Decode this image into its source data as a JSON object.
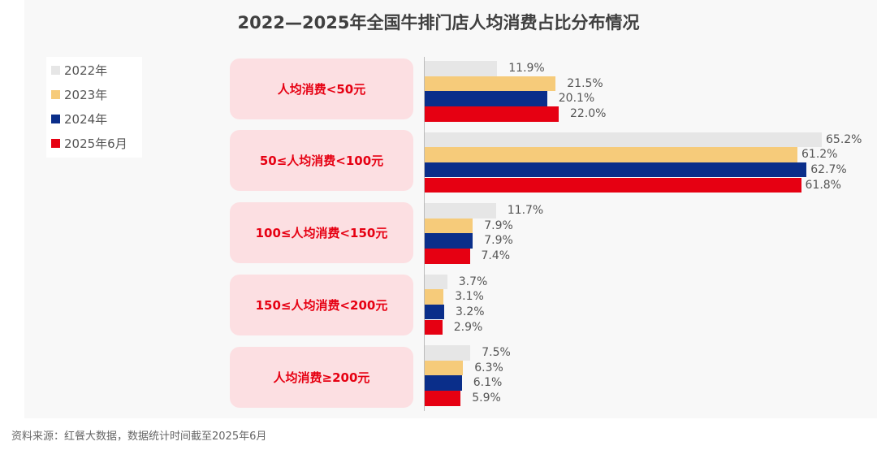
{
  "chart_data": {
    "type": "bar",
    "orientation": "horizontal",
    "title": "2022—2025年全国牛排门店人均消费占比分布情况",
    "categories": [
      "人均消费<50元",
      "50≤人均消费<100元",
      "100≤人均消费<150元",
      "150≤人均消费<200元",
      "人均消费≥200元"
    ],
    "unit": "%",
    "series": [
      {
        "name": "2022年",
        "color": "#e6e6e6",
        "values": [
          11.9,
          65.2,
          11.7,
          3.7,
          7.5
        ]
      },
      {
        "name": "2023年",
        "color": "#f6cb7a",
        "values": [
          21.5,
          61.2,
          7.9,
          3.1,
          6.3
        ]
      },
      {
        "name": "2024年",
        "color": "#0a2e8a",
        "values": [
          20.1,
          62.7,
          7.9,
          3.2,
          6.1
        ]
      },
      {
        "name": "2025年6月",
        "color": "#e60012",
        "values": [
          22.0,
          61.8,
          7.4,
          2.9,
          5.9
        ]
      }
    ],
    "legend_position": "top-left",
    "grid": false,
    "xlim": [
      0,
      70
    ]
  },
  "source": "资料来源：红餐大数据，数据统计时间截至2025年6月"
}
